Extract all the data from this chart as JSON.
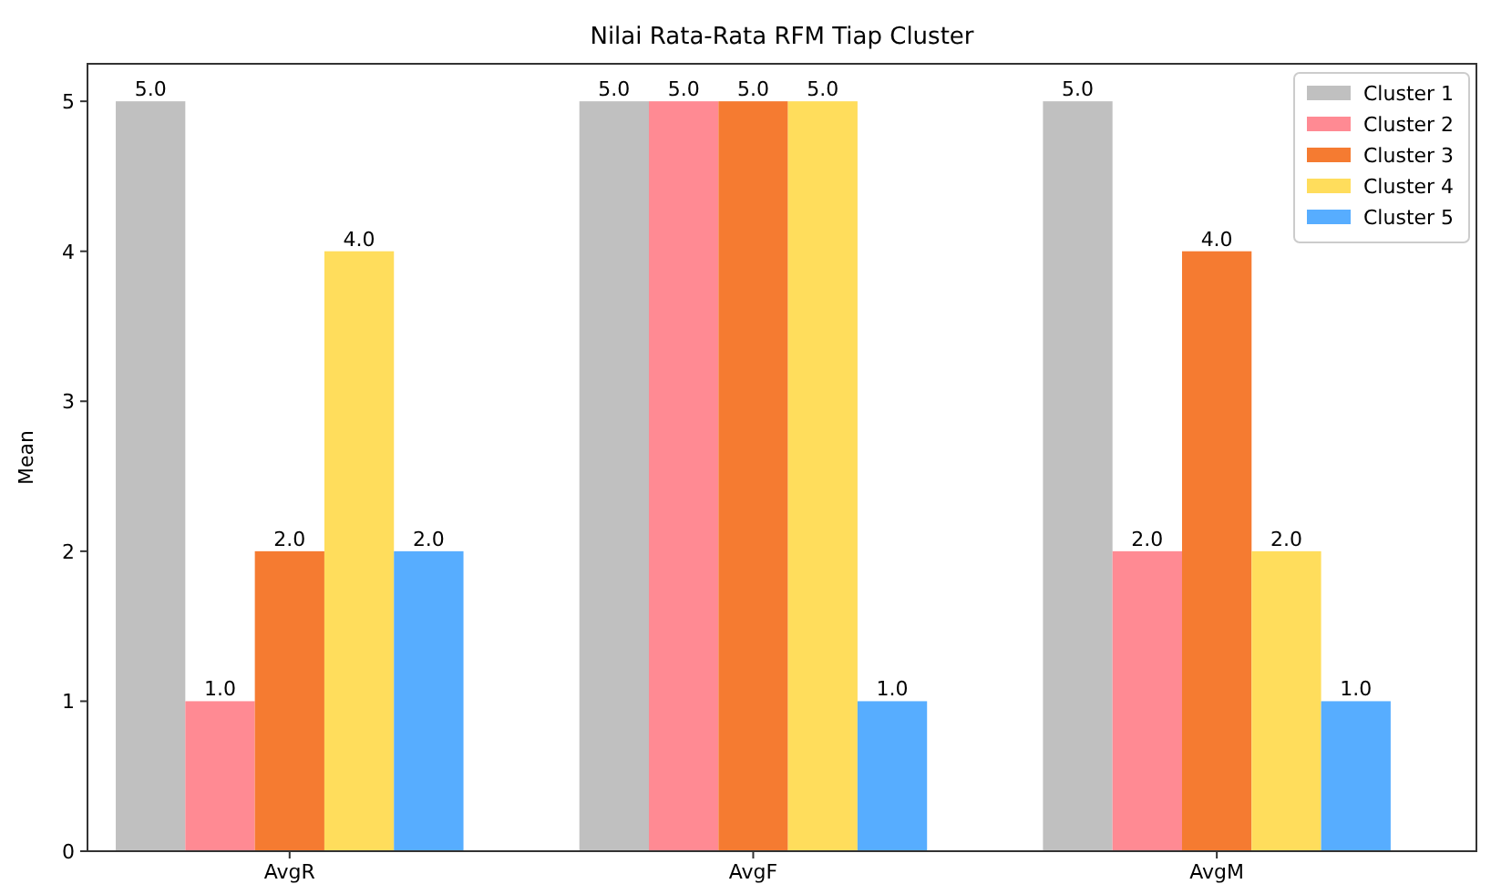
{
  "chart_data": {
    "type": "bar",
    "title": "Nilai Rata-Rata RFM Tiap Cluster",
    "ylabel": "Mean",
    "categories": [
      "AvgR",
      "AvgF",
      "AvgM"
    ],
    "series": [
      {
        "name": "Cluster 1",
        "color": "#c0c0c0",
        "values": [
          5,
          5,
          5
        ],
        "value_labels": [
          "5.0",
          "5.0",
          "5.0"
        ]
      },
      {
        "name": "Cluster 2",
        "color": "#ff8a93",
        "values": [
          1,
          5,
          2
        ],
        "value_labels": [
          "1.0",
          "5.0",
          "2.0"
        ]
      },
      {
        "name": "Cluster 3",
        "color": "#f57b31",
        "values": [
          2,
          5,
          4
        ],
        "value_labels": [
          "2.0",
          "5.0",
          "4.0"
        ]
      },
      {
        "name": "Cluster 4",
        "color": "#ffdd5c",
        "values": [
          4,
          5,
          2
        ],
        "value_labels": [
          "4.0",
          "5.0",
          "2.0"
        ]
      },
      {
        "name": "Cluster 5",
        "color": "#57adff",
        "values": [
          2,
          1,
          1
        ],
        "value_labels": [
          "2.0",
          "1.0",
          "1.0"
        ]
      }
    ],
    "ylim": [
      0,
      5.25
    ],
    "yticks": [
      0,
      1,
      2,
      3,
      4,
      5
    ],
    "legend": "top right"
  }
}
